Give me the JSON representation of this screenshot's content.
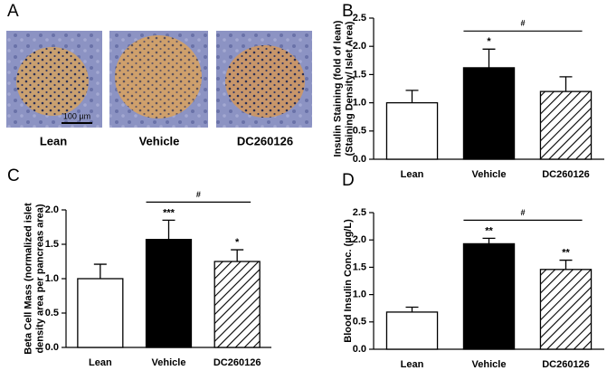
{
  "panel_a": {
    "label": "A",
    "scale_bar": "100 µm",
    "images": [
      "Lean",
      "Vehicle",
      "DC260126"
    ]
  },
  "chart_data": [
    {
      "type": "bar",
      "label": "B",
      "y_label": [
        "Insulin Staining (fold of lean)",
        "(Staining Density/ Islet Area)"
      ],
      "categories": [
        "Lean",
        "Vehicle",
        "DC260126"
      ],
      "values": [
        1.0,
        1.62,
        1.2
      ],
      "errors": [
        0.22,
        0.33,
        0.26
      ],
      "colors": [
        "#ffffff",
        "#000000",
        "#ffffff"
      ],
      "hatch": [
        false,
        false,
        true
      ],
      "markers": [
        null,
        "*",
        null
      ],
      "bracket": "#",
      "ylim": [
        0,
        2.5
      ],
      "yticks": [
        {
          "value": 0,
          "label": "0.0"
        },
        0.5,
        {
          "value": 1,
          "label": "1.0"
        },
        1.5,
        {
          "value": 2,
          "label": "2.0"
        },
        2.5
      ],
      "grid": false
    },
    {
      "type": "bar",
      "label": "C",
      "y_label": [
        "Beta Cell Mass (normalized islet",
        "density area per pancreas area)"
      ],
      "categories": [
        "Lean",
        "Vehicle",
        "DC260126"
      ],
      "values": [
        1.0,
        1.57,
        1.25
      ],
      "errors": [
        0.21,
        0.28,
        0.17
      ],
      "colors": [
        "#ffffff",
        "#000000",
        "#ffffff"
      ],
      "hatch": [
        false,
        false,
        true
      ],
      "markers": [
        null,
        "***",
        "*"
      ],
      "bracket": "#",
      "ylim": [
        0,
        2.0
      ],
      "yticks": [
        {
          "value": 0,
          "label": "0.0"
        },
        0.5,
        {
          "value": 1,
          "label": "1.0"
        },
        1.5,
        {
          "value": 2,
          "label": "2.0"
        }
      ],
      "grid": false
    },
    {
      "type": "bar",
      "label": "D",
      "y_label": [
        "Blood Insulin Conc. (µg/L)"
      ],
      "categories": [
        "Lean",
        "Vehicle",
        "DC260126"
      ],
      "values": [
        0.68,
        1.93,
        1.46
      ],
      "errors": [
        0.09,
        0.1,
        0.17
      ],
      "colors": [
        "#ffffff",
        "#000000",
        "#ffffff"
      ],
      "hatch": [
        false,
        false,
        true
      ],
      "markers": [
        null,
        "**",
        "**"
      ],
      "bracket": "#",
      "ylim": [
        0,
        2.5
      ],
      "yticks": [
        {
          "value": 0,
          "label": "0.0"
        },
        0.5,
        {
          "value": 1,
          "label": "1.0"
        },
        1.5,
        {
          "value": 2,
          "label": "2.0"
        },
        2.5
      ],
      "grid": false
    }
  ]
}
